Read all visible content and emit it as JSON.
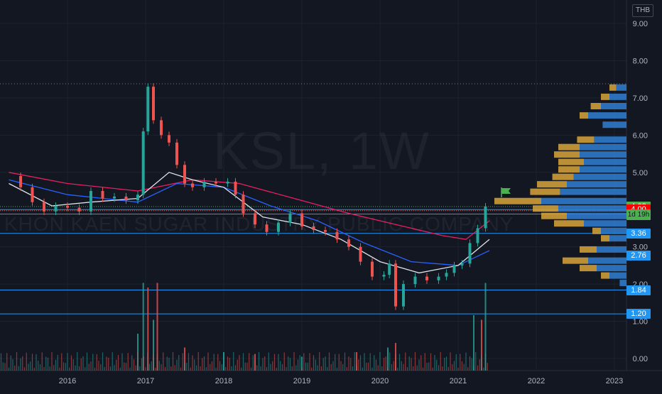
{
  "symbol": "KSL",
  "interval": "1W",
  "company_name": "KHON KAEN SUGAR INDUSTRY PUBLIC COMPANY",
  "currency": "THB",
  "countdown": "1d 19h",
  "colors": {
    "background": "#131722",
    "grid": "#1e222d",
    "up": "#26a69a",
    "down": "#ef5350",
    "level_line": "#2196f3",
    "ma_white": "#e0e3eb",
    "ma_blue": "#2962ff",
    "ma_pink": "#e91e63",
    "vp_blue": "#2f7fd1",
    "vp_yellow": "#d9a53a"
  },
  "chart_data": {
    "type": "candlestick",
    "y_axis_ticks": [
      "9.00",
      "8.00",
      "7.00",
      "6.00",
      "5.00",
      "4.00",
      "3.00",
      "2.00",
      "1.00",
      "0.00"
    ],
    "x_axis_ticks": [
      "2016",
      "2017",
      "2018",
      "2019",
      "2020",
      "2021",
      "2022",
      "2023"
    ],
    "price_labels": [
      {
        "text": "4.08",
        "value": 4.08,
        "color": "#4caf50"
      },
      {
        "text": "4.00",
        "value": 4.0,
        "color": "#ff0000"
      },
      {
        "text": "3.88",
        "value": 3.88,
        "color": "#2196f3"
      },
      {
        "text": "3.36",
        "value": 3.36,
        "color": "#2196f3"
      },
      {
        "text": "2.76",
        "value": 2.76,
        "color": "#2196f3"
      },
      {
        "text": "1.84",
        "value": 1.84,
        "color": "#2196f3"
      },
      {
        "text": "1.20",
        "value": 1.2,
        "color": "#2196f3"
      }
    ],
    "horizontal_levels": [
      4.0,
      3.88,
      3.36,
      1.84,
      1.2
    ],
    "high_marker": 7.38,
    "price_series": [
      {
        "t": 2015.25,
        "v": 4.9
      },
      {
        "t": 2015.4,
        "v": 4.6
      },
      {
        "t": 2015.55,
        "v": 4.2
      },
      {
        "t": 2015.7,
        "v": 3.95
      },
      {
        "t": 2015.85,
        "v": 4.1
      },
      {
        "t": 2016.0,
        "v": 4.05
      },
      {
        "t": 2016.15,
        "v": 3.95
      },
      {
        "t": 2016.3,
        "v": 4.5
      },
      {
        "t": 2016.45,
        "v": 4.3
      },
      {
        "t": 2016.6,
        "v": 4.35
      },
      {
        "t": 2016.75,
        "v": 4.25
      },
      {
        "t": 2016.9,
        "v": 4.4
      },
      {
        "t": 2016.97,
        "v": 6.1
      },
      {
        "t": 2017.03,
        "v": 7.3
      },
      {
        "t": 2017.1,
        "v": 6.4
      },
      {
        "t": 2017.2,
        "v": 6.0
      },
      {
        "t": 2017.3,
        "v": 5.8
      },
      {
        "t": 2017.4,
        "v": 5.2
      },
      {
        "t": 2017.5,
        "v": 4.7
      },
      {
        "t": 2017.6,
        "v": 4.6
      },
      {
        "t": 2017.75,
        "v": 4.75
      },
      {
        "t": 2017.9,
        "v": 4.7
      },
      {
        "t": 2018.05,
        "v": 4.75
      },
      {
        "t": 2018.15,
        "v": 4.4
      },
      {
        "t": 2018.25,
        "v": 3.9
      },
      {
        "t": 2018.4,
        "v": 3.6
      },
      {
        "t": 2018.55,
        "v": 3.4
      },
      {
        "t": 2018.7,
        "v": 3.65
      },
      {
        "t": 2018.85,
        "v": 3.9
      },
      {
        "t": 2019.0,
        "v": 3.55
      },
      {
        "t": 2019.15,
        "v": 3.45
      },
      {
        "t": 2019.3,
        "v": 3.4
      },
      {
        "t": 2019.45,
        "v": 3.2
      },
      {
        "t": 2019.6,
        "v": 3.0
      },
      {
        "t": 2019.75,
        "v": 2.6
      },
      {
        "t": 2019.9,
        "v": 2.2
      },
      {
        "t": 2020.05,
        "v": 2.25
      },
      {
        "t": 2020.12,
        "v": 2.55
      },
      {
        "t": 2020.2,
        "v": 1.4
      },
      {
        "t": 2020.3,
        "v": 2.0
      },
      {
        "t": 2020.45,
        "v": 2.2
      },
      {
        "t": 2020.6,
        "v": 2.1
      },
      {
        "t": 2020.75,
        "v": 2.2
      },
      {
        "t": 2020.85,
        "v": 2.3
      },
      {
        "t": 2020.95,
        "v": 2.5
      },
      {
        "t": 2021.05,
        "v": 2.55
      },
      {
        "t": 2021.15,
        "v": 3.1
      },
      {
        "t": 2021.25,
        "v": 3.5
      },
      {
        "t": 2021.35,
        "v": 4.08
      }
    ],
    "ma_white": [
      {
        "t": 2015.25,
        "v": 4.7
      },
      {
        "t": 2015.8,
        "v": 4.1
      },
      {
        "t": 2016.3,
        "v": 4.2
      },
      {
        "t": 2016.9,
        "v": 4.3
      },
      {
        "t": 2017.3,
        "v": 5.0
      },
      {
        "t": 2017.6,
        "v": 4.8
      },
      {
        "t": 2018.0,
        "v": 4.6
      },
      {
        "t": 2018.5,
        "v": 3.8
      },
      {
        "t": 2019.0,
        "v": 3.6
      },
      {
        "t": 2019.5,
        "v": 3.2
      },
      {
        "t": 2020.0,
        "v": 2.6
      },
      {
        "t": 2020.5,
        "v": 2.3
      },
      {
        "t": 2021.0,
        "v": 2.5
      },
      {
        "t": 2021.4,
        "v": 3.2
      }
    ],
    "ma_blue": [
      {
        "t": 2015.25,
        "v": 4.8
      },
      {
        "t": 2016.0,
        "v": 4.4
      },
      {
        "t": 2016.9,
        "v": 4.2
      },
      {
        "t": 2017.4,
        "v": 4.7
      },
      {
        "t": 2018.0,
        "v": 4.6
      },
      {
        "t": 2018.6,
        "v": 4.1
      },
      {
        "t": 2019.2,
        "v": 3.7
      },
      {
        "t": 2019.8,
        "v": 3.1
      },
      {
        "t": 2020.4,
        "v": 2.6
      },
      {
        "t": 2021.0,
        "v": 2.5
      },
      {
        "t": 2021.4,
        "v": 2.9
      }
    ],
    "ma_pink": [
      {
        "t": 2015.25,
        "v": 5.0
      },
      {
        "t": 2016.0,
        "v": 4.7
      },
      {
        "t": 2016.9,
        "v": 4.5
      },
      {
        "t": 2017.6,
        "v": 4.8
      },
      {
        "t": 2018.2,
        "v": 4.7
      },
      {
        "t": 2018.9,
        "v": 4.3
      },
      {
        "t": 2019.6,
        "v": 3.9
      },
      {
        "t": 2020.2,
        "v": 3.6
      },
      {
        "t": 2020.8,
        "v": 3.3
      },
      {
        "t": 2021.1,
        "v": 3.2
      },
      {
        "t": 2021.4,
        "v": 3.7
      }
    ],
    "volume": [
      {
        "t": 2016.97,
        "v": 0.95
      },
      {
        "t": 2017.03,
        "v": 0.9
      },
      {
        "t": 2017.1,
        "v": 0.55
      },
      {
        "t": 2017.15,
        "v": 0.95
      },
      {
        "t": 2016.9,
        "v": 0.4
      },
      {
        "t": 2017.5,
        "v": 0.25
      },
      {
        "t": 2018.0,
        "v": 0.2
      },
      {
        "t": 2018.4,
        "v": 0.18
      },
      {
        "t": 2019.0,
        "v": 0.15
      },
      {
        "t": 2019.7,
        "v": 0.2
      },
      {
        "t": 2020.1,
        "v": 0.25
      },
      {
        "t": 2020.2,
        "v": 0.3
      },
      {
        "t": 2021.2,
        "v": 0.6
      },
      {
        "t": 2021.3,
        "v": 0.55
      },
      {
        "t": 2021.35,
        "v": 0.95
      }
    ],
    "volume_profile": [
      {
        "price": 7.25,
        "blue": 0.12,
        "yellow": 0.08
      },
      {
        "price": 7.0,
        "blue": 0.2,
        "yellow": 0.1
      },
      {
        "price": 6.75,
        "blue": 0.3,
        "yellow": 0.12
      },
      {
        "price": 6.5,
        "blue": 0.45,
        "yellow": 0.1
      },
      {
        "price": 6.25,
        "blue": 0.28,
        "yellow": 0.0
      },
      {
        "price": 5.85,
        "blue": 0.38,
        "yellow": 0.2
      },
      {
        "price": 5.65,
        "blue": 0.55,
        "yellow": 0.25
      },
      {
        "price": 5.45,
        "blue": 0.55,
        "yellow": 0.3
      },
      {
        "price": 5.25,
        "blue": 0.5,
        "yellow": 0.3
      },
      {
        "price": 5.05,
        "blue": 0.55,
        "yellow": 0.25
      },
      {
        "price": 4.85,
        "blue": 0.62,
        "yellow": 0.25
      },
      {
        "price": 4.65,
        "blue": 0.7,
        "yellow": 0.35
      },
      {
        "price": 4.45,
        "blue": 0.78,
        "yellow": 0.35
      },
      {
        "price": 4.2,
        "blue": 1.0,
        "yellow": 0.55
      },
      {
        "price": 4.0,
        "blue": 0.8,
        "yellow": 0.3
      },
      {
        "price": 3.8,
        "blue": 0.7,
        "yellow": 0.3
      },
      {
        "price": 3.6,
        "blue": 0.5,
        "yellow": 0.35
      },
      {
        "price": 3.4,
        "blue": 0.3,
        "yellow": 0.1
      },
      {
        "price": 3.2,
        "blue": 0.2,
        "yellow": 0.1
      },
      {
        "price": 2.9,
        "blue": 0.35,
        "yellow": 0.2
      },
      {
        "price": 2.6,
        "blue": 0.45,
        "yellow": 0.3
      },
      {
        "price": 2.4,
        "blue": 0.35,
        "yellow": 0.2
      },
      {
        "price": 2.2,
        "blue": 0.2,
        "yellow": 0.1
      },
      {
        "price": 2.0,
        "blue": 0.08,
        "yellow": 0.0
      }
    ]
  }
}
